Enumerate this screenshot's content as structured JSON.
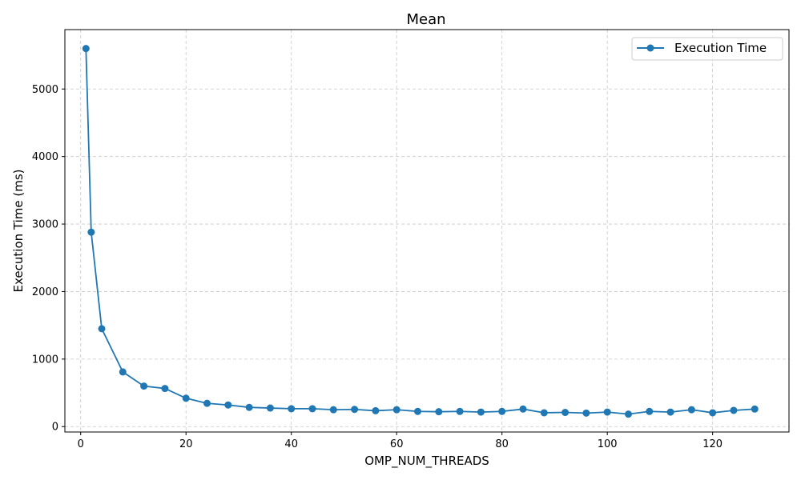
{
  "chart_data": {
    "type": "line",
    "title": "Mean",
    "xlabel": "OMP_NUM_THREADS",
    "ylabel": "Execution Time (ms)",
    "xlim": [
      -3,
      134.5
    ],
    "ylim": [
      -80,
      5880
    ],
    "xticks": [
      0,
      20,
      40,
      60,
      80,
      100,
      120
    ],
    "yticks": [
      0,
      1000,
      2000,
      3000,
      4000,
      5000
    ],
    "grid": true,
    "legend_position": "top-right",
    "series": [
      {
        "name": "Execution Time",
        "color": "#1f77b4",
        "marker": "circle",
        "x": [
          1,
          2,
          4,
          8,
          12,
          16,
          20,
          24,
          28,
          32,
          36,
          40,
          44,
          48,
          52,
          56,
          60,
          64,
          68,
          72,
          76,
          80,
          84,
          88,
          92,
          96,
          100,
          104,
          108,
          112,
          116,
          120,
          124,
          128
        ],
        "y": [
          5600,
          2880,
          1450,
          810,
          600,
          565,
          420,
          345,
          320,
          285,
          275,
          265,
          265,
          250,
          255,
          235,
          250,
          225,
          220,
          225,
          215,
          225,
          260,
          205,
          210,
          200,
          215,
          185,
          225,
          215,
          250,
          205,
          240,
          260
        ]
      }
    ]
  }
}
